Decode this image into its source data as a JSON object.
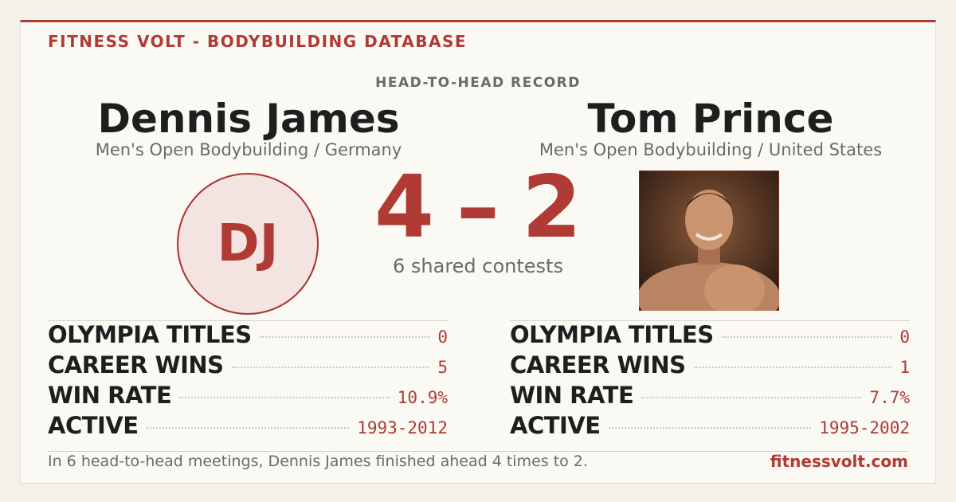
{
  "header": {
    "title": "FITNESS VOLT - BODYBUILDING DATABASE"
  },
  "matchup": {
    "heading": "HEAD-TO-HEAD RECORD",
    "score": {
      "left": "4",
      "separator": "–",
      "right": "2"
    },
    "caption": "6 shared contests"
  },
  "athletes": [
    {
      "name": "Dennis James",
      "subtitle": "Men's Open Bodybuilding / Germany",
      "initials": "DJ",
      "stats": [
        {
          "label": "OLYMPIA TITLES",
          "value": "0"
        },
        {
          "label": "CAREER WINS",
          "value": "5"
        },
        {
          "label": "WIN RATE",
          "value": "10.9%"
        },
        {
          "label": "ACTIVE",
          "value": "1993-2012"
        }
      ]
    },
    {
      "name": "Tom Prince",
      "subtitle": "Men's Open Bodybuilding / United States",
      "stats": [
        {
          "label": "OLYMPIA TITLES",
          "value": "0"
        },
        {
          "label": "CAREER WINS",
          "value": "1"
        },
        {
          "label": "WIN RATE",
          "value": "7.7%"
        },
        {
          "label": "ACTIVE",
          "value": "1995-2002"
        }
      ]
    }
  ],
  "footer": {
    "summary": "In 6 head-to-head meetings, Dennis James finished ahead 4 times to 2.",
    "site": "fitnessvolt.com"
  }
}
